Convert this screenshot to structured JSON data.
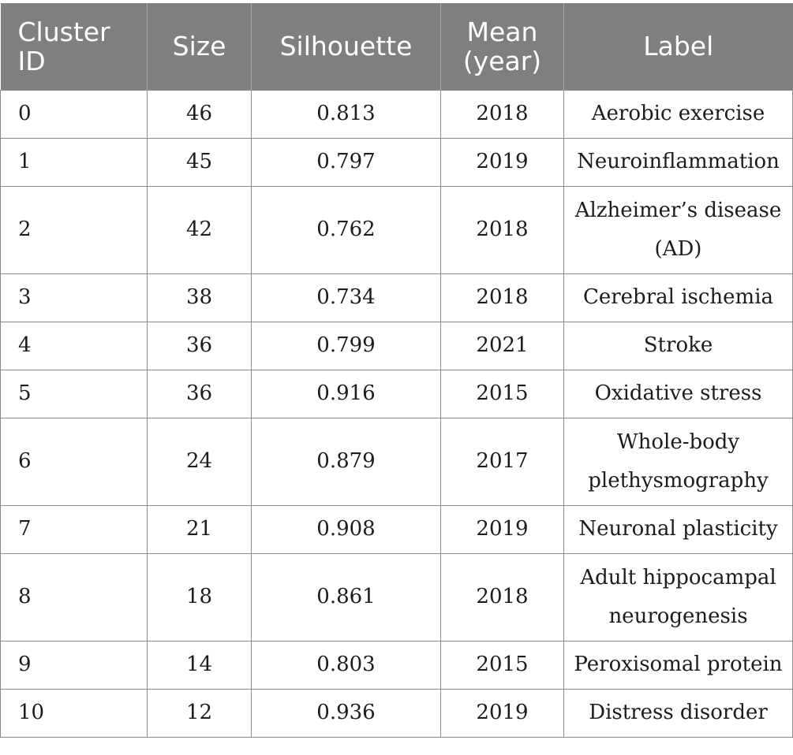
{
  "table": {
    "headers": [
      "Cluster ID",
      "Size",
      "Silhouette",
      "Mean (year)",
      "Label"
    ],
    "rows": [
      {
        "cluster_id": "0",
        "size": "46",
        "silhouette": "0.813",
        "mean_year": "2018",
        "label": "Aerobic exercise"
      },
      {
        "cluster_id": "1",
        "size": "45",
        "silhouette": "0.797",
        "mean_year": "2019",
        "label": "Neuroinflammation"
      },
      {
        "cluster_id": "2",
        "size": "42",
        "silhouette": "0.762",
        "mean_year": "2018",
        "label": "Alzheimer’s disease (AD)"
      },
      {
        "cluster_id": "3",
        "size": "38",
        "silhouette": "0.734",
        "mean_year": "2018",
        "label": "Cerebral ischemia"
      },
      {
        "cluster_id": "4",
        "size": "36",
        "silhouette": "0.799",
        "mean_year": "2021",
        "label": "Stroke"
      },
      {
        "cluster_id": "5",
        "size": "36",
        "silhouette": "0.916",
        "mean_year": "2015",
        "label": "Oxidative stress"
      },
      {
        "cluster_id": "6",
        "size": "24",
        "silhouette": "0.879",
        "mean_year": "2017",
        "label": "Whole-body plethysmography"
      },
      {
        "cluster_id": "7",
        "size": "21",
        "silhouette": "0.908",
        "mean_year": "2019",
        "label": "Neuronal plasticity"
      },
      {
        "cluster_id": "8",
        "size": "18",
        "silhouette": "0.861",
        "mean_year": "2018",
        "label": "Adult hippocampal neurogenesis"
      },
      {
        "cluster_id": "9",
        "size": "14",
        "silhouette": "0.803",
        "mean_year": "2015",
        "label": "Peroxisomal protein"
      },
      {
        "cluster_id": "10",
        "size": "12",
        "silhouette": "0.936",
        "mean_year": "2019",
        "label": "Distress disorder"
      }
    ]
  },
  "colors": {
    "header_background": "#7f7f7f",
    "header_text": "#ffffff",
    "grid_line": "#8a8a8a",
    "body_text": "#1c1c1c"
  }
}
